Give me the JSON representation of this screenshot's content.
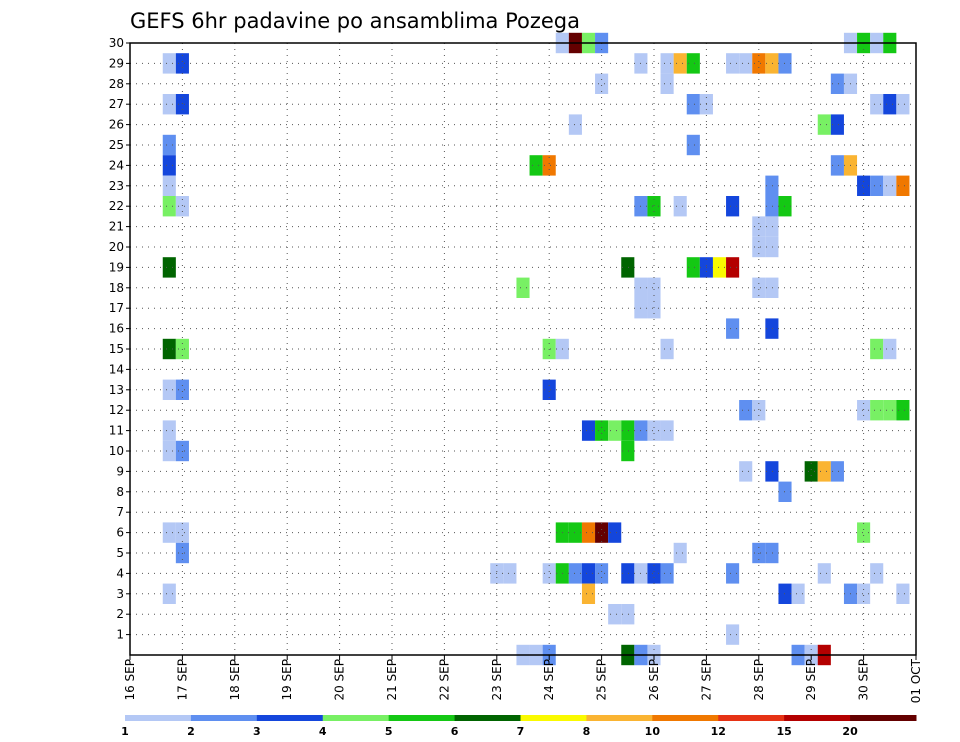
{
  "chart_data": {
    "type": "heatmap",
    "title": "GEFS 6hr padavine po ansamblima Pozega",
    "y_ticks": [
      "1",
      "2",
      "3",
      "4",
      "5",
      "6",
      "7",
      "8",
      "9",
      "10",
      "11",
      "12",
      "13",
      "14",
      "15",
      "16",
      "17",
      "18",
      "19",
      "20",
      "21",
      "22",
      "23",
      "24",
      "25",
      "26",
      "27",
      "28",
      "29",
      "30"
    ],
    "x_ticks": [
      "16 SEP",
      "17 SEP",
      "18 SEP",
      "19 SEP",
      "20 SEP",
      "21 SEP",
      "22 SEP",
      "23 SEP",
      "24 SEP",
      "25 SEP",
      "26 SEP",
      "27 SEP",
      "28 SEP",
      "29 SEP",
      "30 SEP",
      "01 OCT"
    ],
    "x_range": [
      0,
      15
    ],
    "y_range": [
      0,
      30
    ],
    "x_step_days": 0.25,
    "grid": true,
    "colorbar": {
      "labels": [
        "1",
        "2",
        "3",
        "4",
        "5",
        "6",
        "7",
        "8",
        "10",
        "12",
        "15",
        "20"
      ],
      "colors": [
        "#b4c8f5",
        "#5f8ff0",
        "#1446dc",
        "#78f064",
        "#14c814",
        "#006400",
        "#fafa00",
        "#fab432",
        "#f07800",
        "#e63214",
        "#b40000",
        "#640000"
      ]
    },
    "cells": [
      {
        "d": 16.75,
        "m": 29,
        "c": 0
      },
      {
        "d": 17.0,
        "m": 29,
        "c": 2
      },
      {
        "d": 16.75,
        "m": 27,
        "c": 0
      },
      {
        "d": 17.0,
        "m": 27,
        "c": 2
      },
      {
        "d": 16.75,
        "m": 25,
        "c": 1
      },
      {
        "d": 16.75,
        "m": 24,
        "c": 2
      },
      {
        "d": 16.75,
        "m": 23,
        "c": 0
      },
      {
        "d": 16.75,
        "m": 22,
        "c": 3
      },
      {
        "d": 17.0,
        "m": 22,
        "c": 0
      },
      {
        "d": 16.75,
        "m": 19,
        "c": 5
      },
      {
        "d": 16.75,
        "m": 15,
        "c": 5
      },
      {
        "d": 17.0,
        "m": 15,
        "c": 3
      },
      {
        "d": 16.75,
        "m": 13,
        "c": 0
      },
      {
        "d": 17.0,
        "m": 13,
        "c": 1
      },
      {
        "d": 16.75,
        "m": 11,
        "c": 0
      },
      {
        "d": 16.75,
        "m": 10,
        "c": 0
      },
      {
        "d": 17.0,
        "m": 10,
        "c": 1
      },
      {
        "d": 16.75,
        "m": 6,
        "c": 0
      },
      {
        "d": 17.0,
        "m": 6,
        "c": 0
      },
      {
        "d": 17.0,
        "m": 5,
        "c": 1
      },
      {
        "d": 16.75,
        "m": 3,
        "c": 0
      },
      {
        "d": 23.0,
        "m": 4,
        "c": 0
      },
      {
        "d": 23.25,
        "m": 4,
        "c": 0
      },
      {
        "d": 23.5,
        "m": 18,
        "c": 3
      },
      {
        "d": 23.5,
        "m": 0,
        "c": 0
      },
      {
        "d": 23.75,
        "m": 0,
        "c": 0
      },
      {
        "d": 24.0,
        "m": 0,
        "c": 1
      },
      {
        "d": 23.75,
        "m": 24,
        "c": 4
      },
      {
        "d": 24.0,
        "m": 24,
        "c": 8
      },
      {
        "d": 24.0,
        "m": 15,
        "c": 3
      },
      {
        "d": 24.25,
        "m": 15,
        "c": 0
      },
      {
        "d": 24.0,
        "m": 13,
        "c": 2
      },
      {
        "d": 24.0,
        "m": 4,
        "c": 0
      },
      {
        "d": 24.25,
        "m": 4,
        "c": 4
      },
      {
        "d": 24.5,
        "m": 4,
        "c": 1
      },
      {
        "d": 24.75,
        "m": 4,
        "c": 2
      },
      {
        "d": 25.0,
        "m": 4,
        "c": 1
      },
      {
        "d": 24.25,
        "m": 6,
        "c": 4
      },
      {
        "d": 24.5,
        "m": 6,
        "c": 4
      },
      {
        "d": 24.75,
        "m": 6,
        "c": 8
      },
      {
        "d": 25.0,
        "m": 6,
        "c": 11
      },
      {
        "d": 25.25,
        "m": 6,
        "c": 2
      },
      {
        "d": 24.25,
        "m": 30,
        "c": 0
      },
      {
        "d": 24.5,
        "m": 30,
        "c": 11
      },
      {
        "d": 24.75,
        "m": 30,
        "c": 3
      },
      {
        "d": 25.0,
        "m": 30,
        "c": 1
      },
      {
        "d": 24.5,
        "m": 26,
        "c": 0
      },
      {
        "d": 24.75,
        "m": 3,
        "c": 7
      },
      {
        "d": 24.75,
        "m": 11,
        "c": 2
      },
      {
        "d": 25.0,
        "m": 11,
        "c": 4
      },
      {
        "d": 25.25,
        "m": 11,
        "c": 3
      },
      {
        "d": 25.5,
        "m": 11,
        "c": 4
      },
      {
        "d": 25.75,
        "m": 11,
        "c": 1
      },
      {
        "d": 26.0,
        "m": 11,
        "c": 0
      },
      {
        "d": 26.25,
        "m": 11,
        "c": 0
      },
      {
        "d": 25.0,
        "m": 28,
        "c": 0
      },
      {
        "d": 25.25,
        "m": 2,
        "c": 0
      },
      {
        "d": 25.5,
        "m": 2,
        "c": 0
      },
      {
        "d": 25.5,
        "m": 10,
        "c": 4
      },
      {
        "d": 25.5,
        "m": 4,
        "c": 2
      },
      {
        "d": 25.75,
        "m": 4,
        "c": 0
      },
      {
        "d": 26.0,
        "m": 4,
        "c": 2
      },
      {
        "d": 26.25,
        "m": 4,
        "c": 1
      },
      {
        "d": 25.5,
        "m": 19,
        "c": 5
      },
      {
        "d": 25.5,
        "m": 0,
        "c": 5
      },
      {
        "d": 25.75,
        "m": 0,
        "c": 1
      },
      {
        "d": 26.0,
        "m": 0,
        "c": 0
      },
      {
        "d": 25.75,
        "m": 22,
        "c": 1
      },
      {
        "d": 26.0,
        "m": 22,
        "c": 4
      },
      {
        "d": 25.75,
        "m": 18,
        "c": 0
      },
      {
        "d": 26.0,
        "m": 18,
        "c": 0
      },
      {
        "d": 25.75,
        "m": 17,
        "c": 0
      },
      {
        "d": 26.0,
        "m": 17,
        "c": 0
      },
      {
        "d": 25.75,
        "m": 29,
        "c": 0
      },
      {
        "d": 26.25,
        "m": 15,
        "c": 0
      },
      {
        "d": 26.25,
        "m": 29,
        "c": 0
      },
      {
        "d": 26.5,
        "m": 29,
        "c": 7
      },
      {
        "d": 26.25,
        "m": 28,
        "c": 0
      },
      {
        "d": 26.5,
        "m": 22,
        "c": 0
      },
      {
        "d": 26.5,
        "m": 5,
        "c": 0
      },
      {
        "d": 26.75,
        "m": 29,
        "c": 4
      },
      {
        "d": 26.75,
        "m": 27,
        "c": 1
      },
      {
        "d": 27.0,
        "m": 27,
        "c": 0
      },
      {
        "d": 26.75,
        "m": 25,
        "c": 1
      },
      {
        "d": 26.75,
        "m": 19,
        "c": 4
      },
      {
        "d": 27.0,
        "m": 19,
        "c": 2
      },
      {
        "d": 27.25,
        "m": 19,
        "c": 6
      },
      {
        "d": 27.5,
        "m": 19,
        "c": 10
      },
      {
        "d": 27.5,
        "m": 29,
        "c": 0
      },
      {
        "d": 27.75,
        "m": 29,
        "c": 0
      },
      {
        "d": 28.0,
        "m": 29,
        "c": 8
      },
      {
        "d": 28.25,
        "m": 29,
        "c": 7
      },
      {
        "d": 28.5,
        "m": 29,
        "c": 1
      },
      {
        "d": 27.5,
        "m": 22,
        "c": 2
      },
      {
        "d": 27.5,
        "m": 16,
        "c": 1
      },
      {
        "d": 27.5,
        "m": 4,
        "c": 1
      },
      {
        "d": 27.5,
        "m": 1,
        "c": 0
      },
      {
        "d": 27.75,
        "m": 12,
        "c": 1
      },
      {
        "d": 28.0,
        "m": 12,
        "c": 0
      },
      {
        "d": 27.75,
        "m": 9,
        "c": 0
      },
      {
        "d": 28.0,
        "m": 21,
        "c": 0
      },
      {
        "d": 28.25,
        "m": 21,
        "c": 0
      },
      {
        "d": 28.0,
        "m": 20,
        "c": 0
      },
      {
        "d": 28.25,
        "m": 20,
        "c": 0
      },
      {
        "d": 28.0,
        "m": 18,
        "c": 0
      },
      {
        "d": 28.25,
        "m": 18,
        "c": 0
      },
      {
        "d": 28.0,
        "m": 5,
        "c": 1
      },
      {
        "d": 28.25,
        "m": 5,
        "c": 1
      },
      {
        "d": 28.25,
        "m": 23,
        "c": 1
      },
      {
        "d": 28.25,
        "m": 22,
        "c": 1
      },
      {
        "d": 28.5,
        "m": 22,
        "c": 4
      },
      {
        "d": 28.25,
        "m": 16,
        "c": 2
      },
      {
        "d": 28.25,
        "m": 9,
        "c": 2
      },
      {
        "d": 28.5,
        "m": 8,
        "c": 1
      },
      {
        "d": 28.5,
        "m": 3,
        "c": 2
      },
      {
        "d": 28.75,
        "m": 3,
        "c": 0
      },
      {
        "d": 28.75,
        "m": 0,
        "c": 1
      },
      {
        "d": 29.0,
        "m": 0,
        "c": 0
      },
      {
        "d": 29.25,
        "m": 0,
        "c": 10
      },
      {
        "d": 29.0,
        "m": 9,
        "c": 5
      },
      {
        "d": 29.25,
        "m": 9,
        "c": 7
      },
      {
        "d": 29.5,
        "m": 9,
        "c": 1
      },
      {
        "d": 29.25,
        "m": 26,
        "c": 3
      },
      {
        "d": 29.5,
        "m": 26,
        "c": 2
      },
      {
        "d": 29.25,
        "m": 4,
        "c": 0
      },
      {
        "d": 29.5,
        "m": 28,
        "c": 1
      },
      {
        "d": 29.75,
        "m": 28,
        "c": 0
      },
      {
        "d": 29.5,
        "m": 24,
        "c": 1
      },
      {
        "d": 29.75,
        "m": 24,
        "c": 7
      },
      {
        "d": 29.75,
        "m": 30,
        "c": 0
      },
      {
        "d": 30.0,
        "m": 30,
        "c": 4
      },
      {
        "d": 30.25,
        "m": 30,
        "c": 0
      },
      {
        "d": 30.5,
        "m": 30,
        "c": 4
      },
      {
        "d": 29.75,
        "m": 3,
        "c": 1
      },
      {
        "d": 30.0,
        "m": 3,
        "c": 0
      },
      {
        "d": 30.0,
        "m": 23,
        "c": 2
      },
      {
        "d": 30.25,
        "m": 23,
        "c": 1
      },
      {
        "d": 30.5,
        "m": 23,
        "c": 0
      },
      {
        "d": 30.75,
        "m": 23,
        "c": 8
      },
      {
        "d": 30.0,
        "m": 12,
        "c": 0
      },
      {
        "d": 30.25,
        "m": 12,
        "c": 3
      },
      {
        "d": 30.5,
        "m": 12,
        "c": 3
      },
      {
        "d": 30.75,
        "m": 12,
        "c": 4
      },
      {
        "d": 30.0,
        "m": 6,
        "c": 3
      },
      {
        "d": 30.25,
        "m": 27,
        "c": 0
      },
      {
        "d": 30.5,
        "m": 27,
        "c": 2
      },
      {
        "d": 30.75,
        "m": 27,
        "c": 0
      },
      {
        "d": 30.25,
        "m": 15,
        "c": 3
      },
      {
        "d": 30.5,
        "m": 15,
        "c": 0
      },
      {
        "d": 30.25,
        "m": 4,
        "c": 0
      },
      {
        "d": 30.75,
        "m": 3,
        "c": 0
      }
    ]
  }
}
